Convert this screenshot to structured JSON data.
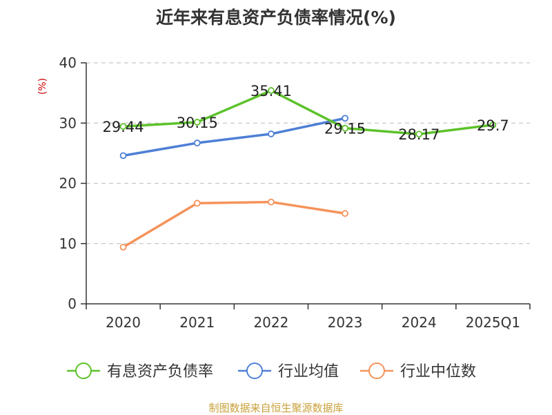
{
  "chart_data": {
    "type": "line",
    "title": "近年来有息资产负债率情况(%)",
    "ylabel": "(%)",
    "ylim": [
      0,
      40
    ],
    "yticks": [
      0,
      10,
      20,
      30,
      40
    ],
    "categories": [
      "2020",
      "2021",
      "2022",
      "2023",
      "2024",
      "2025Q1"
    ],
    "grid": "horizontal dashed",
    "legend_position": "bottom",
    "series": [
      {
        "name": "有息资产负债率",
        "color": "#5cc22a",
        "values": [
          29.44,
          30.15,
          35.41,
          29.15,
          28.17,
          29.7
        ],
        "labels": [
          "29.44",
          "30.15",
          "35.41",
          "29.15",
          "28.17",
          "29.7"
        ]
      },
      {
        "name": "行业均值",
        "color": "#4e7fd6",
        "values": [
          24.6,
          26.7,
          28.2,
          30.8,
          null,
          null
        ]
      },
      {
        "name": "行业中位数",
        "color": "#f5935a",
        "values": [
          9.4,
          16.7,
          16.9,
          15.0,
          null,
          null
        ]
      }
    ]
  },
  "ylabel_color": "#cc0000",
  "source": "制图数据来自恒生聚源数据库"
}
